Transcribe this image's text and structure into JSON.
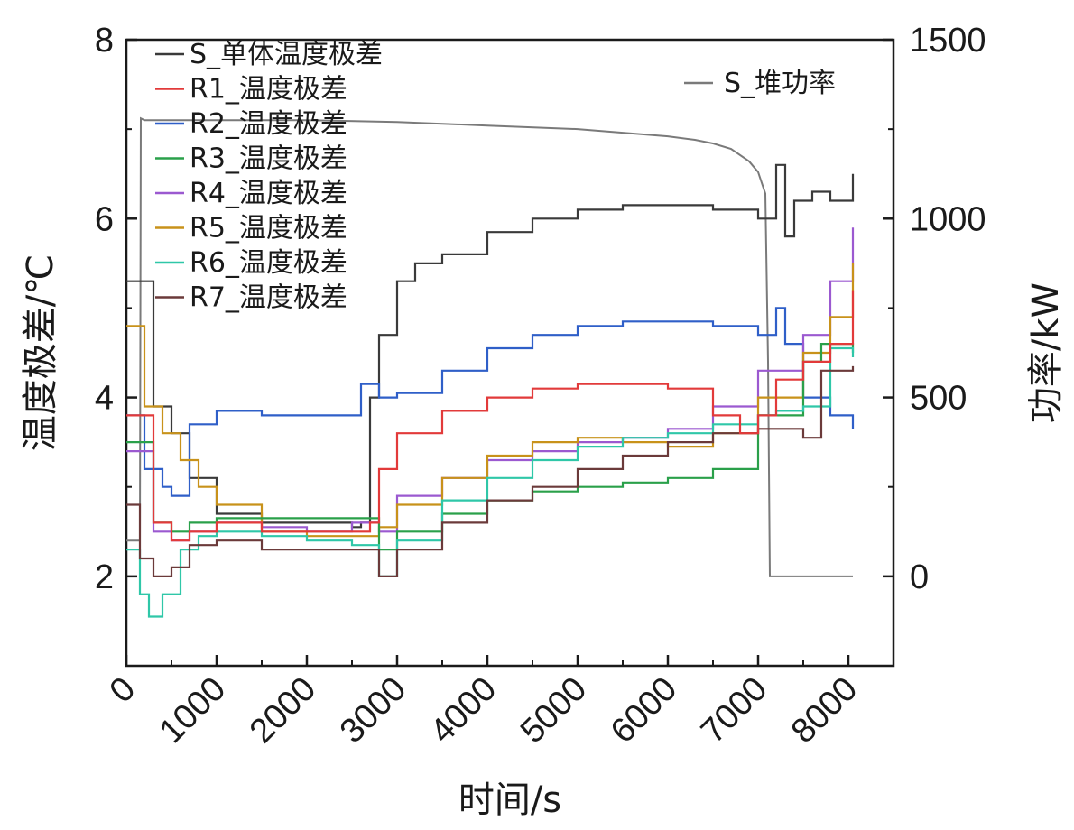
{
  "chart_data": {
    "type": "line",
    "xlabel": "时间/s",
    "ylabel_left": "温度极差/℃",
    "ylabel_right": "功率/kW",
    "xlim": [
      0,
      8500
    ],
    "ylim_left": [
      1,
      8
    ],
    "ylim_right": [
      -250,
      1500
    ],
    "x_ticks": [
      0,
      1000,
      2000,
      3000,
      4000,
      5000,
      6000,
      7000,
      8000
    ],
    "x_tick_labels": [
      "0",
      "1000",
      "2000",
      "3000",
      "4000",
      "5000",
      "6000",
      "7000",
      "8000"
    ],
    "y_left_ticks": [
      2,
      4,
      6,
      8
    ],
    "y_left_tick_labels": [
      "2",
      "4",
      "6",
      "8"
    ],
    "y_right_ticks": [
      0,
      500,
      1000,
      1500
    ],
    "y_right_tick_labels": [
      "0",
      "500",
      "1000",
      "1500"
    ],
    "grid": false,
    "legend_position": "top-left",
    "series": [
      {
        "name": "S_单体温度极差",
        "axis": "left",
        "color": "#3a3a3a",
        "step": true,
        "x": [
          0,
          300,
          500,
          700,
          1000,
          1500,
          2000,
          2500,
          2600,
          2700,
          2800,
          3000,
          3200,
          3500,
          4000,
          4500,
          5000,
          5500,
          6000,
          6500,
          7000,
          7100,
          7200,
          7300,
          7400,
          7600,
          7700,
          7800,
          7900,
          8050
        ],
        "y": [
          5.3,
          3.9,
          3.6,
          3.1,
          2.7,
          2.6,
          2.6,
          2.55,
          2.6,
          4.0,
          4.7,
          5.3,
          5.5,
          5.6,
          5.85,
          6.0,
          6.1,
          6.15,
          6.15,
          6.1,
          6.0,
          6.0,
          6.6,
          5.8,
          6.2,
          6.3,
          6.3,
          6.2,
          6.2,
          6.5
        ]
      },
      {
        "name": "R1_温度极差",
        "axis": "left",
        "color": "#e23a3a",
        "step": true,
        "x": [
          0,
          300,
          500,
          700,
          1000,
          1500,
          2000,
          2500,
          2700,
          2800,
          3000,
          3500,
          4000,
          4500,
          5000,
          5500,
          6000,
          6500,
          6800,
          7000,
          7200,
          7500,
          7800,
          8050
        ],
        "y": [
          3.8,
          2.6,
          2.4,
          2.5,
          2.6,
          2.5,
          2.5,
          2.5,
          2.6,
          3.2,
          3.6,
          3.85,
          4.0,
          4.1,
          4.15,
          4.15,
          4.1,
          3.8,
          3.6,
          3.8,
          4.2,
          4.4,
          4.6,
          5.2
        ]
      },
      {
        "name": "R2_温度极差",
        "axis": "left",
        "color": "#2f5fc8",
        "step": true,
        "x": [
          0,
          200,
          400,
          500,
          700,
          1000,
          1500,
          2000,
          2500,
          2600,
          2800,
          3000,
          3500,
          4000,
          4500,
          5000,
          5500,
          6000,
          6500,
          7000,
          7100,
          7200,
          7300,
          7500,
          7800,
          8050
        ],
        "y": [
          3.8,
          3.2,
          3.0,
          2.9,
          3.7,
          3.85,
          3.8,
          3.8,
          3.8,
          4.15,
          4.0,
          4.05,
          4.3,
          4.55,
          4.7,
          4.8,
          4.85,
          4.85,
          4.8,
          4.7,
          4.7,
          5.0,
          4.6,
          4.0,
          3.8,
          3.65
        ]
      },
      {
        "name": "R3_温度极差",
        "axis": "left",
        "color": "#2aa04a",
        "step": true,
        "x": [
          0,
          300,
          500,
          700,
          1000,
          1500,
          2000,
          2500,
          2700,
          2800,
          3000,
          3500,
          4000,
          4500,
          5000,
          5500,
          6000,
          6500,
          7000,
          7500,
          7700,
          8050
        ],
        "y": [
          3.5,
          2.6,
          2.5,
          2.6,
          2.65,
          2.65,
          2.65,
          2.65,
          2.65,
          2.3,
          2.5,
          2.7,
          2.85,
          2.95,
          3.0,
          3.05,
          3.1,
          3.2,
          3.8,
          4.4,
          4.6,
          4.5
        ]
      },
      {
        "name": "R4_温度极差",
        "axis": "left",
        "color": "#9b59d0",
        "step": true,
        "x": [
          0,
          300,
          500,
          700,
          1000,
          1500,
          2000,
          2500,
          2800,
          3000,
          3500,
          4000,
          4500,
          5000,
          5500,
          6000,
          6500,
          7000,
          7500,
          7800,
          8050
        ],
        "y": [
          3.4,
          2.5,
          2.4,
          2.5,
          2.6,
          2.55,
          2.5,
          2.6,
          2.5,
          2.9,
          3.1,
          3.3,
          3.4,
          3.5,
          3.55,
          3.65,
          3.9,
          4.3,
          4.7,
          5.3,
          5.9
        ]
      },
      {
        "name": "R5_温度极差",
        "axis": "left",
        "color": "#c8921a",
        "step": true,
        "x": [
          0,
          200,
          400,
          600,
          800,
          1000,
          1500,
          2000,
          2500,
          2800,
          3000,
          3500,
          4000,
          4500,
          5000,
          5500,
          6000,
          6500,
          7000,
          7500,
          7800,
          8050
        ],
        "y": [
          4.8,
          3.9,
          3.6,
          3.3,
          3.0,
          2.8,
          2.5,
          2.45,
          2.45,
          2.55,
          2.8,
          3.1,
          3.35,
          3.5,
          3.55,
          3.5,
          3.45,
          3.6,
          4.0,
          4.5,
          4.9,
          5.5
        ]
      },
      {
        "name": "R6_温度极差",
        "axis": "left",
        "color": "#2fc7a8",
        "step": true,
        "x": [
          0,
          150,
          250,
          400,
          600,
          800,
          1000,
          1500,
          2000,
          2500,
          2800,
          3000,
          3500,
          4000,
          4500,
          5000,
          5500,
          6000,
          6500,
          7000,
          7200,
          7500,
          7800,
          8050
        ],
        "y": [
          2.3,
          1.8,
          1.55,
          1.8,
          2.3,
          2.45,
          2.5,
          2.45,
          2.4,
          2.35,
          2.0,
          2.4,
          2.85,
          3.1,
          3.3,
          3.45,
          3.55,
          3.6,
          3.7,
          3.8,
          3.85,
          3.9,
          4.55,
          4.45
        ]
      },
      {
        "name": "R7_温度极差",
        "axis": "left",
        "color": "#6b3a3a",
        "step": true,
        "x": [
          0,
          150,
          300,
          500,
          700,
          1000,
          1500,
          2000,
          2500,
          2800,
          3000,
          3500,
          4000,
          4500,
          5000,
          5500,
          6000,
          6500,
          7000,
          7500,
          7700,
          8050
        ],
        "y": [
          2.8,
          2.2,
          2.0,
          2.1,
          2.35,
          2.4,
          2.3,
          2.3,
          2.3,
          2.0,
          2.3,
          2.6,
          2.85,
          3.0,
          3.2,
          3.35,
          3.5,
          3.6,
          3.65,
          3.55,
          4.3,
          4.35
        ]
      },
      {
        "name": "S_堆功率",
        "axis": "right",
        "color": "#7a7a7a",
        "step": false,
        "x": [
          0,
          150,
          160,
          200,
          1000,
          2000,
          3000,
          4000,
          5000,
          6000,
          6300,
          6500,
          6700,
          6900,
          7000,
          7080,
          7110,
          7130,
          7200,
          7600,
          7800,
          8050
        ],
        "y": [
          100,
          100,
          1280,
          1275,
          1275,
          1275,
          1270,
          1260,
          1250,
          1230,
          1220,
          1210,
          1195,
          1160,
          1130,
          1070,
          600,
          0,
          0,
          0,
          0,
          0
        ]
      }
    ]
  }
}
